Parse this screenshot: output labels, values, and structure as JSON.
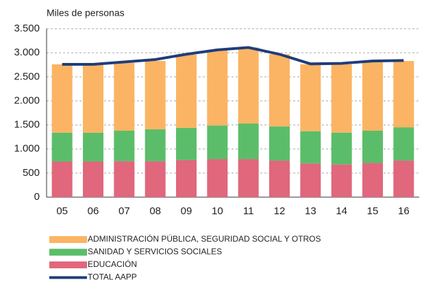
{
  "chart_data": {
    "type": "bar",
    "stacked": true,
    "ylabel": "Miles de personas",
    "categories": [
      "05",
      "06",
      "07",
      "08",
      "09",
      "10",
      "11",
      "12",
      "13",
      "14",
      "15",
      "16"
    ],
    "series": [
      {
        "name": "EDUCACIÓN",
        "color": "#e0677c",
        "values": [
          740,
          740,
          745,
          745,
          770,
          790,
          790,
          760,
          700,
          680,
          710,
          760
        ]
      },
      {
        "name": "SANIDAD Y SERVICIOS SOCIALES",
        "color": "#5bbd6a",
        "values": [
          600,
          600,
          635,
          665,
          670,
          700,
          740,
          710,
          670,
          660,
          670,
          690
        ]
      },
      {
        "name": "ADMINISTRACIÓN PÚBLICA, SEGURIDAD SOCIAL Y OTROS",
        "color": "#fbb463",
        "values": [
          1420,
          1410,
          1410,
          1420,
          1520,
          1570,
          1580,
          1500,
          1390,
          1420,
          1430,
          1380
        ]
      },
      {
        "name": "TOTAL AAPP",
        "color": "#1f3d7a",
        "type": "line",
        "values": [
          2760,
          2760,
          2810,
          2860,
          2970,
          3060,
          3110,
          2970,
          2770,
          2780,
          2830,
          2840
        ]
      }
    ],
    "legend_order": [
      2,
      1,
      0,
      3
    ],
    "ylim": [
      0,
      3500
    ],
    "yticks": [
      0,
      500,
      {
        "value": 1000,
        "label": "1.000"
      },
      {
        "value": 1500,
        "label": "1.500"
      },
      {
        "value": 2000,
        "label": "2.000"
      },
      {
        "value": 2500,
        "label": "2.500"
      },
      {
        "value": 3000,
        "label": "3.000"
      },
      {
        "value": 3500,
        "label": "3.500"
      }
    ],
    "grid": true
  }
}
